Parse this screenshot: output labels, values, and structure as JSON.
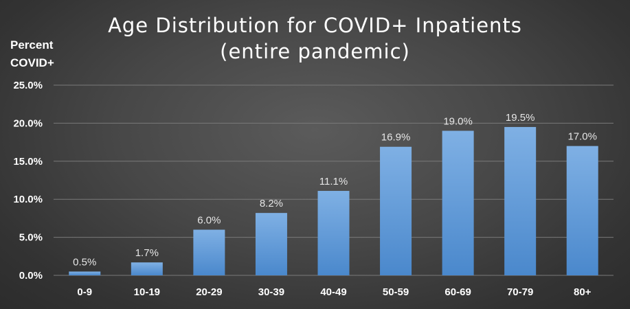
{
  "chart_data": {
    "type": "bar",
    "title_lines": [
      "Age Distribution for COVID+ Inpatients",
      "(entire pandemic)"
    ],
    "ylabel_lines": [
      "Percent",
      "COVID+"
    ],
    "xlabel": "",
    "categories": [
      "0-9",
      "10-19",
      "20-29",
      "30-39",
      "40-49",
      "50-59",
      "60-69",
      "70-79",
      "80+"
    ],
    "values": [
      0.5,
      1.7,
      6.0,
      8.2,
      11.1,
      16.9,
      19.0,
      19.5,
      17.0
    ],
    "data_labels": [
      "0.5%",
      "1.7%",
      "6.0%",
      "8.2%",
      "11.1%",
      "16.9%",
      "19.0%",
      "19.5%",
      "17.0%"
    ],
    "yticks": [
      0,
      5,
      10,
      15,
      20,
      25
    ],
    "ytick_labels": [
      "0.0%",
      "5.0%",
      "10.0%",
      "15.0%",
      "20.0%",
      "25.0%"
    ],
    "ylim": [
      0,
      25
    ],
    "grid": true,
    "legend": "none",
    "colors": {
      "bar_top": "#7fb0e4",
      "bar_bottom": "#4a88cc",
      "grid": "#7a7a7a",
      "text": "#ffffff"
    }
  }
}
